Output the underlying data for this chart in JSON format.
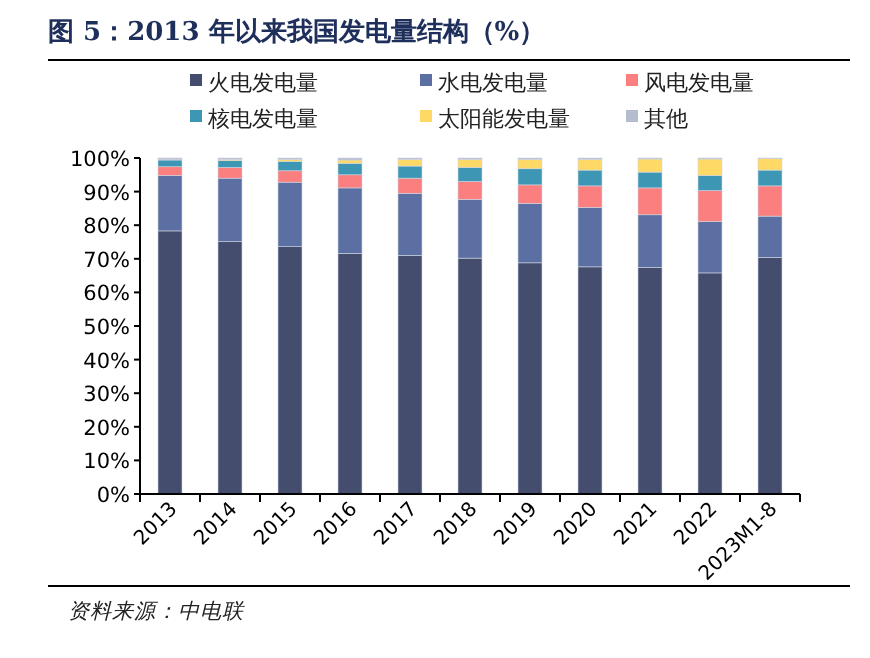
{
  "chart_data": {
    "type": "bar",
    "stacked": true,
    "title": "图 5：2013 年以来我国发电量结构（%）",
    "categories": [
      "2013",
      "2014",
      "2015",
      "2016",
      "2017",
      "2018",
      "2019",
      "2020",
      "2021",
      "2022",
      "2023M1-8"
    ],
    "series": [
      {
        "name": "火电发电量",
        "color": "#444d6e",
        "values": [
          78.3,
          75.1,
          73.6,
          71.6,
          71.0,
          70.2,
          68.8,
          67.6,
          67.4,
          65.8,
          70.4
        ]
      },
      {
        "name": "水电发电量",
        "color": "#5b6fa3",
        "values": [
          16.5,
          18.9,
          19.2,
          19.5,
          18.5,
          17.5,
          17.7,
          17.7,
          15.7,
          15.3,
          12.3
        ]
      },
      {
        "name": "风电发电量",
        "color": "#fb7f7f",
        "values": [
          2.6,
          3.2,
          3.4,
          3.9,
          4.5,
          5.3,
          5.5,
          6.4,
          8.0,
          9.2,
          9.0
        ]
      },
      {
        "name": "核电发电量",
        "color": "#3e96b5",
        "values": [
          2.0,
          2.0,
          2.8,
          3.4,
          3.6,
          4.2,
          4.8,
          4.7,
          4.7,
          4.5,
          4.7
        ]
      },
      {
        "name": "太阳能发电量",
        "color": "#ffd966",
        "values": [
          0.1,
          0.4,
          0.6,
          1.0,
          2.0,
          2.4,
          2.8,
          3.2,
          3.9,
          4.9,
          3.4
        ]
      },
      {
        "name": "其他",
        "color": "#b4bdd0",
        "values": [
          0.5,
          0.4,
          0.4,
          0.6,
          0.4,
          0.4,
          0.4,
          0.4,
          0.3,
          0.3,
          0.2
        ]
      }
    ],
    "ylim": [
      0,
      100
    ],
    "yticks": [
      {
        "value": 0,
        "label": "0%"
      },
      {
        "value": 10,
        "label": "10%"
      },
      {
        "value": 20,
        "label": "20%"
      },
      {
        "value": 30,
        "label": "30%"
      },
      {
        "value": 40,
        "label": "40%"
      },
      {
        "value": 50,
        "label": "50%"
      },
      {
        "value": 60,
        "label": "60%"
      },
      {
        "value": 70,
        "label": "70%"
      },
      {
        "value": 80,
        "label": "80%"
      },
      {
        "value": 90,
        "label": "90%"
      },
      {
        "value": 100,
        "label": "100%"
      }
    ],
    "grid": false,
    "legend": "top",
    "annotations": [
      "资料来源：中电联"
    ]
  }
}
